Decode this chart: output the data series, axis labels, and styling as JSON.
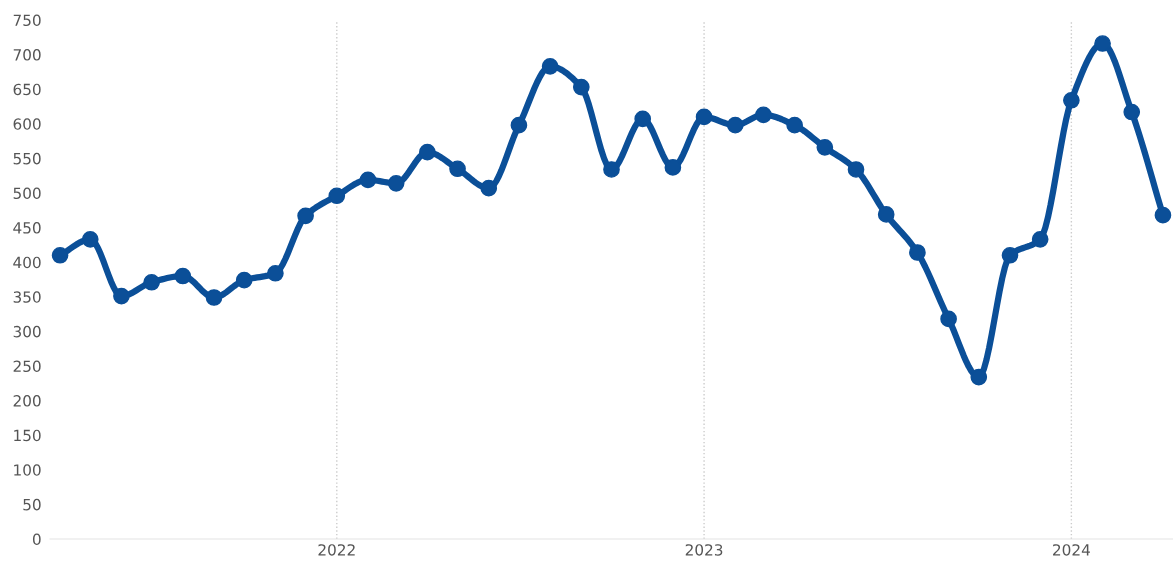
{
  "chart_data": {
    "type": "line",
    "x": [
      "2021-04",
      "2021-05",
      "2021-06",
      "2021-07",
      "2021-08",
      "2021-09",
      "2021-10",
      "2021-11",
      "2021-12",
      "2022-01",
      "2022-02",
      "2022-03",
      "2022-04",
      "2022-05",
      "2022-06",
      "2022-07",
      "2022-08",
      "2022-09",
      "2022-10",
      "2022-11",
      "2022-12",
      "2023-01",
      "2023-02",
      "2023-03",
      "2023-04",
      "2023-05",
      "2023-06",
      "2023-07",
      "2023-08",
      "2023-09",
      "2023-10",
      "2023-11",
      "2023-12",
      "2024-01",
      "2024-02",
      "2024-03",
      "2024-04"
    ],
    "series": [
      {
        "color": "#0b4f98",
        "values": [
          410,
          433,
          351,
          371,
          380,
          349,
          374,
          384,
          467,
          496,
          519,
          514,
          559,
          535,
          507,
          598,
          683,
          653,
          534,
          607,
          537,
          610,
          598,
          613,
          598,
          566,
          534,
          469,
          414,
          318,
          234,
          410,
          433,
          634,
          716,
          617,
          468
        ]
      }
    ],
    "xticks": [
      {
        "value": "2022-01-01",
        "label": "2022"
      },
      {
        "value": "2023-01-01",
        "label": "2023"
      },
      {
        "value": "2024-01-01",
        "label": "2024"
      }
    ],
    "xlim": [
      "2021-03-22",
      "2024-04-11"
    ],
    "ylim": [
      0,
      750
    ],
    "yticks": [
      0,
      50,
      100,
      150,
      200,
      250,
      300,
      350,
      400,
      450,
      500,
      550,
      600,
      650,
      700,
      750
    ],
    "grid": "x",
    "marker": "circle",
    "line_style": "solid"
  }
}
